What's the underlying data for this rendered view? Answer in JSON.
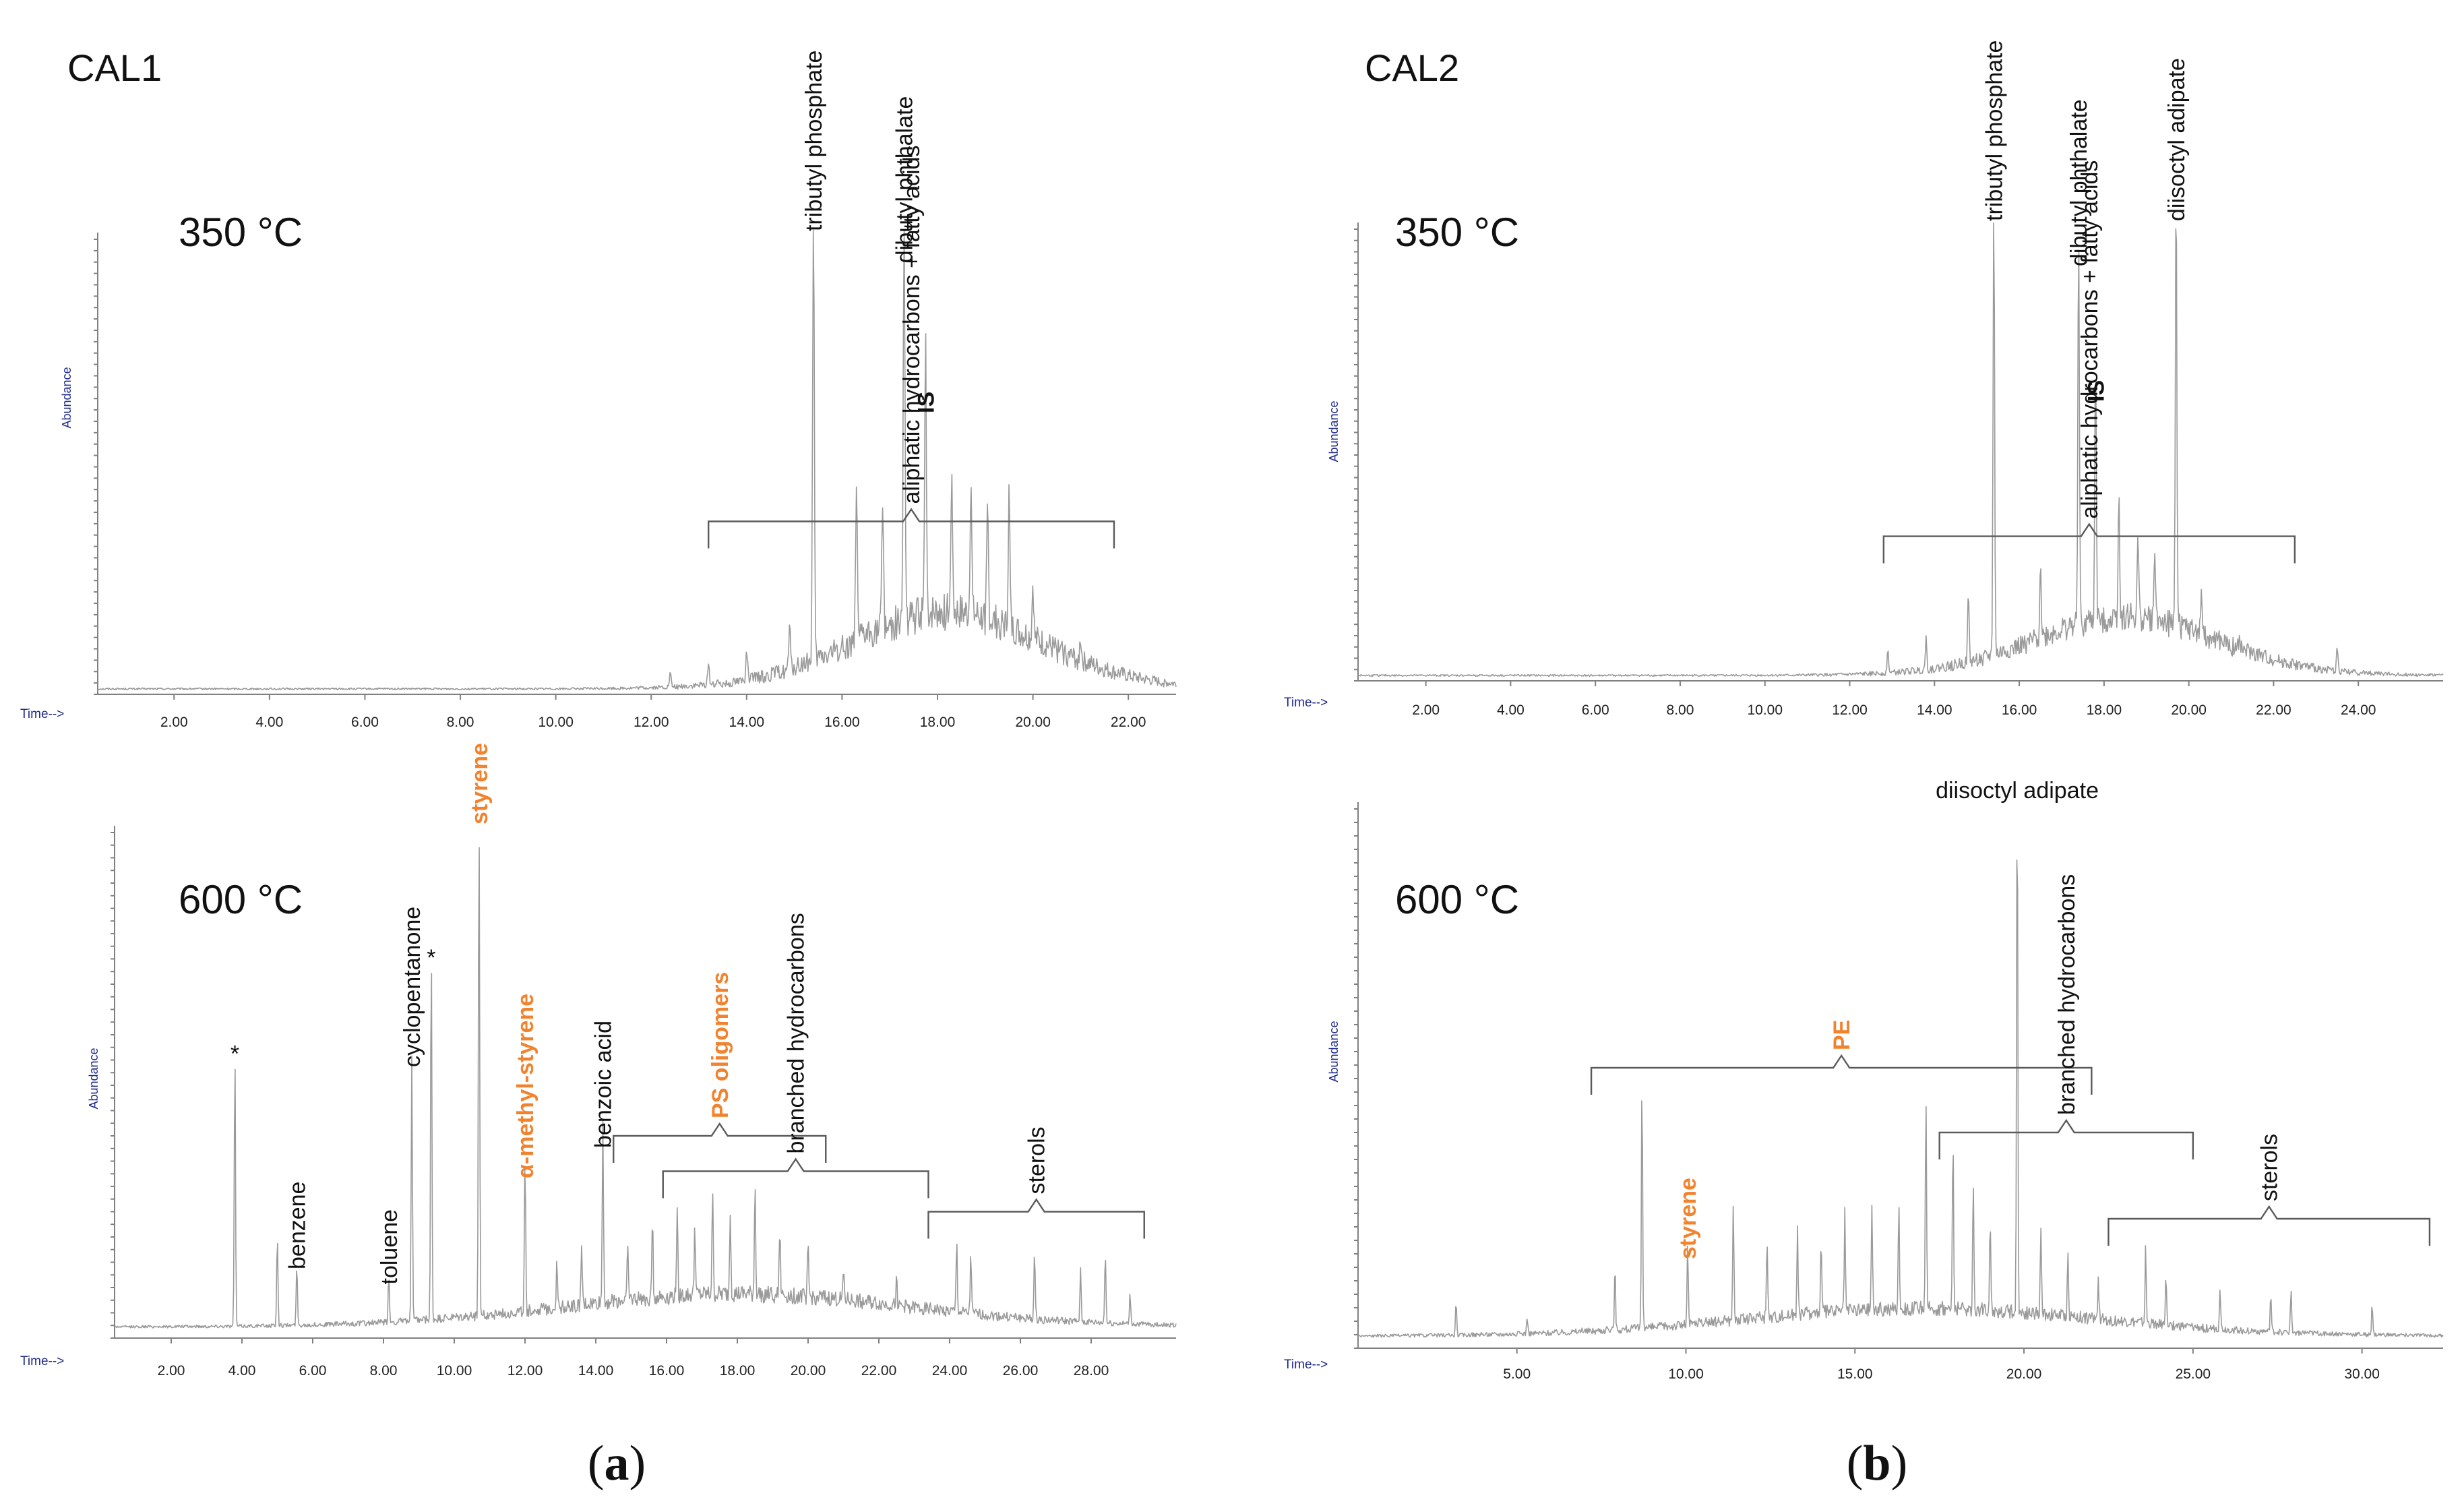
{
  "colors": {
    "trace": "#9a9a9a",
    "highlight": "#f2832e",
    "axis_text": "#1f2a8c",
    "text": "#111111"
  },
  "panel_tags": [
    {
      "open": "(",
      "letter": "a",
      "close": ")"
    },
    {
      "open": "(",
      "letter": "b",
      "close": ")"
    }
  ],
  "chart_data": [
    {
      "type": "line",
      "sample": "CAL1",
      "temperature": "350 °C",
      "ylabel": "Abundance",
      "xlabel": "Time-->",
      "xlim": [
        0.4,
        23.0
      ],
      "x_ticks": [
        2,
        4,
        6,
        8,
        10,
        12,
        14,
        16,
        18,
        20,
        22
      ],
      "tick_decimals": 2,
      "baseline": 0.01,
      "hump": {
        "center": 18.2,
        "width": 2.6,
        "height": 0.13
      },
      "peaks": [
        {
          "rt": 15.4,
          "height": 1.0,
          "label": "tributyl phosphate",
          "style": "normal"
        },
        {
          "rt": 17.3,
          "height": 0.93,
          "label": "dibutyl phthalate",
          "style": "normal"
        },
        {
          "rt": 17.75,
          "height": 0.6,
          "label": "IS",
          "style": "bold"
        },
        {
          "rt": 16.3,
          "height": 0.35,
          "label": "",
          "style": "normal"
        },
        {
          "rt": 16.85,
          "height": 0.3,
          "label": "",
          "style": "normal"
        },
        {
          "rt": 18.3,
          "height": 0.33,
          "label": "",
          "style": "normal"
        },
        {
          "rt": 18.7,
          "height": 0.3,
          "label": "",
          "style": "normal"
        },
        {
          "rt": 19.5,
          "height": 0.3,
          "label": "",
          "style": "normal"
        },
        {
          "rt": 19.05,
          "height": 0.24,
          "label": "",
          "style": "normal"
        },
        {
          "rt": 20.0,
          "height": 0.12,
          "label": "",
          "style": "normal"
        },
        {
          "rt": 14.0,
          "height": 0.07,
          "label": "",
          "style": "normal"
        },
        {
          "rt": 13.2,
          "height": 0.05,
          "label": "",
          "style": "normal"
        },
        {
          "rt": 14.9,
          "height": 0.09,
          "label": "",
          "style": "normal"
        },
        {
          "rt": 21.0,
          "height": 0.05,
          "label": "",
          "style": "normal"
        },
        {
          "rt": 12.4,
          "height": 0.03,
          "label": "",
          "style": "normal"
        }
      ],
      "brackets": [
        {
          "start": 13.2,
          "end": 21.7,
          "level": 0.38,
          "label": "aliphatic hydrocarbons +  fatty acids",
          "style": "normal"
        }
      ]
    },
    {
      "type": "line",
      "sample": "",
      "temperature": "600 °C",
      "ylabel": "Abundance",
      "xlabel": "Time-->",
      "xlim": [
        0.4,
        30.4
      ],
      "x_ticks": [
        2,
        4,
        6,
        8,
        10,
        12,
        14,
        16,
        18,
        20,
        22,
        24,
        26,
        28
      ],
      "tick_decimals": 2,
      "baseline": 0.02,
      "hump": {
        "center": 18.0,
        "width": 6.5,
        "height": 0.05
      },
      "peaks": [
        {
          "rt": 3.8,
          "height": 0.55,
          "label": "*",
          "style": "normal"
        },
        {
          "rt": 5.55,
          "height": 0.12,
          "label": "benzene",
          "style": "normal"
        },
        {
          "rt": 5.0,
          "height": 0.18,
          "label": "",
          "style": "normal"
        },
        {
          "rt": 8.15,
          "height": 0.09,
          "label": "toluene",
          "style": "normal"
        },
        {
          "rt": 8.8,
          "height": 0.52,
          "label": "cyclopentanone",
          "style": "normal"
        },
        {
          "rt": 9.35,
          "height": 0.74,
          "label": "*",
          "style": "normal"
        },
        {
          "rt": 10.7,
          "height": 1.0,
          "label": "styrene",
          "style": "highlight"
        },
        {
          "rt": 12.0,
          "height": 0.3,
          "label": "α-methyl-styrene",
          "style": "highlight"
        },
        {
          "rt": 14.2,
          "height": 0.36,
          "label": "benzoic acid",
          "style": "normal"
        },
        {
          "rt": 12.9,
          "height": 0.1,
          "label": "",
          "style": "normal"
        },
        {
          "rt": 13.6,
          "height": 0.12,
          "label": "",
          "style": "normal"
        },
        {
          "rt": 14.9,
          "height": 0.13,
          "label": "",
          "style": "normal"
        },
        {
          "rt": 15.6,
          "height": 0.16,
          "label": "",
          "style": "normal"
        },
        {
          "rt": 16.3,
          "height": 0.18,
          "label": "",
          "style": "normal"
        },
        {
          "rt": 16.8,
          "height": 0.14,
          "label": "",
          "style": "normal"
        },
        {
          "rt": 17.3,
          "height": 0.2,
          "label": "",
          "style": "normal"
        },
        {
          "rt": 17.8,
          "height": 0.17,
          "label": "",
          "style": "normal"
        },
        {
          "rt": 18.5,
          "height": 0.22,
          "label": "",
          "style": "normal"
        },
        {
          "rt": 19.2,
          "height": 0.13,
          "label": "",
          "style": "normal"
        },
        {
          "rt": 20.0,
          "height": 0.1,
          "label": "",
          "style": "normal"
        },
        {
          "rt": 21.0,
          "height": 0.07,
          "label": "",
          "style": "normal"
        },
        {
          "rt": 22.5,
          "height": 0.05,
          "label": "",
          "style": "normal"
        },
        {
          "rt": 24.2,
          "height": 0.14,
          "label": "",
          "style": "normal"
        },
        {
          "rt": 24.6,
          "height": 0.12,
          "label": "",
          "style": "normal"
        },
        {
          "rt": 26.4,
          "height": 0.13,
          "label": "",
          "style": "normal"
        },
        {
          "rt": 27.7,
          "height": 0.1,
          "label": "",
          "style": "normal"
        },
        {
          "rt": 28.4,
          "height": 0.14,
          "label": "",
          "style": "normal"
        },
        {
          "rt": 29.1,
          "height": 0.06,
          "label": "",
          "style": "normal"
        }
      ],
      "brackets": [
        {
          "start": 14.5,
          "end": 20.5,
          "level": 0.4,
          "label": "PS oligomers",
          "style": "highlight"
        },
        {
          "start": 15.9,
          "end": 23.4,
          "level": 0.33,
          "label": "branched hydrocarbons",
          "style": "normal"
        },
        {
          "start": 23.4,
          "end": 29.5,
          "level": 0.25,
          "label": "sterols",
          "style": "normal"
        }
      ]
    },
    {
      "type": "line",
      "sample": "CAL2",
      "temperature": "350 °C",
      "ylabel": "Abundance",
      "xlabel": "Time-->",
      "xlim": [
        0.4,
        26.0
      ],
      "x_ticks": [
        2,
        4,
        6,
        8,
        10,
        12,
        14,
        16,
        18,
        20,
        22,
        24
      ],
      "tick_decimals": 2,
      "baseline": 0.01,
      "hump": {
        "center": 18.5,
        "width": 2.8,
        "height": 0.1
      },
      "peaks": [
        {
          "rt": 15.4,
          "height": 1.0,
          "label": "tributyl phosphate",
          "style": "normal"
        },
        {
          "rt": 17.4,
          "height": 0.9,
          "label": "dibutyl phthalate",
          "style": "normal"
        },
        {
          "rt": 17.8,
          "height": 0.6,
          "label": "IS",
          "style": "bold"
        },
        {
          "rt": 19.7,
          "height": 1.0,
          "label": "diisoctyl adipate",
          "style": "normal"
        },
        {
          "rt": 18.35,
          "height": 0.28,
          "label": "",
          "style": "normal"
        },
        {
          "rt": 14.8,
          "height": 0.15,
          "label": "",
          "style": "normal"
        },
        {
          "rt": 16.5,
          "height": 0.17,
          "label": "",
          "style": "normal"
        },
        {
          "rt": 18.8,
          "height": 0.18,
          "label": "",
          "style": "normal"
        },
        {
          "rt": 19.2,
          "height": 0.16,
          "label": "",
          "style": "normal"
        },
        {
          "rt": 20.3,
          "height": 0.11,
          "label": "",
          "style": "normal"
        },
        {
          "rt": 13.8,
          "height": 0.07,
          "label": "",
          "style": "normal"
        },
        {
          "rt": 12.9,
          "height": 0.05,
          "label": "",
          "style": "normal"
        },
        {
          "rt": 21.2,
          "height": 0.04,
          "label": "",
          "style": "normal"
        },
        {
          "rt": 23.5,
          "height": 0.05,
          "label": "",
          "style": "normal"
        }
      ],
      "brackets": [
        {
          "start": 12.8,
          "end": 22.5,
          "level": 0.32,
          "label": "aliphatic hydrocarbons +  fatty acids",
          "style": "normal"
        }
      ]
    },
    {
      "type": "line",
      "sample": "",
      "temperature": "600 °C",
      "ylabel": "Abundance",
      "xlabel": "Time-->",
      "xlim": [
        0.3,
        32.4
      ],
      "x_ticks": [
        5,
        10,
        15,
        20,
        25,
        30
      ],
      "tick_decimals": 2,
      "baseline": 0.02,
      "hump": {
        "center": 17.0,
        "width": 7.0,
        "height": 0.04
      },
      "peaks": [
        {
          "rt": 19.8,
          "height": 1.0,
          "label": "diisoctyl adipate",
          "style": "normal"
        },
        {
          "rt": 10.05,
          "height": 0.15,
          "label": "styrene",
          "style": "highlight"
        },
        {
          "rt": 8.7,
          "height": 0.47,
          "label": "",
          "style": "normal"
        },
        {
          "rt": 7.9,
          "height": 0.12,
          "label": "",
          "style": "normal"
        },
        {
          "rt": 3.2,
          "height": 0.06,
          "label": "",
          "style": "normal"
        },
        {
          "rt": 5.3,
          "height": 0.03,
          "label": "",
          "style": "normal"
        },
        {
          "rt": 11.4,
          "height": 0.22,
          "label": "",
          "style": "normal"
        },
        {
          "rt": 12.4,
          "height": 0.15,
          "label": "",
          "style": "normal"
        },
        {
          "rt": 13.3,
          "height": 0.17,
          "label": "",
          "style": "normal"
        },
        {
          "rt": 14.0,
          "height": 0.13,
          "label": "",
          "style": "normal"
        },
        {
          "rt": 14.7,
          "height": 0.18,
          "label": "",
          "style": "normal"
        },
        {
          "rt": 15.5,
          "height": 0.2,
          "label": "",
          "style": "normal"
        },
        {
          "rt": 16.3,
          "height": 0.2,
          "label": "",
          "style": "normal"
        },
        {
          "rt": 17.1,
          "height": 0.39,
          "label": "",
          "style": "normal"
        },
        {
          "rt": 17.9,
          "height": 0.33,
          "label": "",
          "style": "normal"
        },
        {
          "rt": 18.5,
          "height": 0.24,
          "label": "",
          "style": "normal"
        },
        {
          "rt": 19.0,
          "height": 0.18,
          "label": "",
          "style": "normal"
        },
        {
          "rt": 20.5,
          "height": 0.16,
          "label": "",
          "style": "normal"
        },
        {
          "rt": 21.3,
          "height": 0.12,
          "label": "",
          "style": "normal"
        },
        {
          "rt": 22.2,
          "height": 0.08,
          "label": "",
          "style": "normal"
        },
        {
          "rt": 23.6,
          "height": 0.14,
          "label": "",
          "style": "normal"
        },
        {
          "rt": 24.2,
          "height": 0.1,
          "label": "",
          "style": "normal"
        },
        {
          "rt": 25.8,
          "height": 0.08,
          "label": "",
          "style": "normal"
        },
        {
          "rt": 27.3,
          "height": 0.07,
          "label": "",
          "style": "normal"
        },
        {
          "rt": 27.9,
          "height": 0.08,
          "label": "",
          "style": "normal"
        },
        {
          "rt": 30.3,
          "height": 0.06,
          "label": "",
          "style": "normal"
        }
      ],
      "brackets": [
        {
          "start": 7.2,
          "end": 22.0,
          "level": 0.52,
          "label": "PE",
          "style": "highlight"
        },
        {
          "start": 17.5,
          "end": 25.0,
          "level": 0.4,
          "label": "branched hydrocarbons",
          "style": "normal"
        },
        {
          "start": 22.5,
          "end": 32.0,
          "level": 0.24,
          "label": "sterols",
          "style": "normal"
        }
      ]
    }
  ]
}
